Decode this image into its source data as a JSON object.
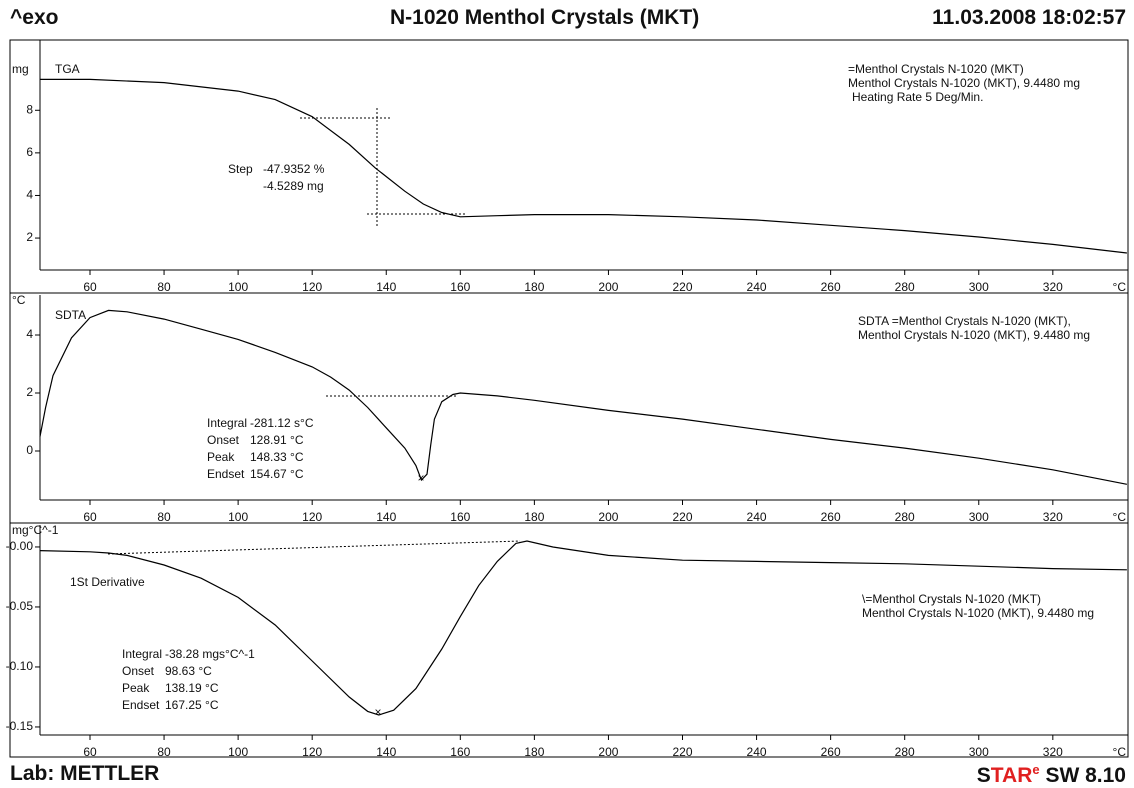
{
  "header": {
    "left": "^exo",
    "title": "N-1020 Menthol Crystals (MKT)",
    "datetime": "11.03.2008 18:02:57"
  },
  "footer": {
    "lab": "Lab: METTLER",
    "brand": "STAR",
    "brand_sup": "e",
    "version": "SW 8.10"
  },
  "chart_data": [
    {
      "type": "line",
      "ylabel": "mg",
      "xlabel": "°C",
      "x": [
        46.5,
        60,
        80,
        100,
        110,
        120,
        130,
        137,
        145,
        150,
        155,
        160,
        170,
        180,
        200,
        220,
        240,
        260,
        280,
        300,
        320,
        340
      ],
      "series": [
        {
          "name": "TGA",
          "color": "#000000",
          "values": [
            9.45,
            9.45,
            9.3,
            8.9,
            8.5,
            7.7,
            6.4,
            5.3,
            4.2,
            3.6,
            3.2,
            3.0,
            3.05,
            3.1,
            3.1,
            3.0,
            2.85,
            2.6,
            2.35,
            2.05,
            1.7,
            1.3
          ]
        }
      ],
      "xlim": [
        46.5,
        340.3
      ],
      "xticks": [
        60,
        80,
        100,
        120,
        140,
        160,
        180,
        200,
        220,
        240,
        260,
        280,
        300,
        320
      ],
      "ylim": [
        0.5,
        11.3
      ],
      "yticks": [
        2,
        4,
        6,
        8
      ],
      "annotations": [
        {
          "label": "Step",
          "lines": [
            "-47.9352 %",
            "-4.5289 mg"
          ]
        }
      ],
      "legend_text": [
        "=Menthol Crystals N-1020 (MKT)",
        "Menthol Crystals N-1020 (MKT), 9.4480 mg",
        "Heating Rate 5 Deg/Min."
      ]
    },
    {
      "type": "line",
      "ylabel": "°C",
      "xlabel": "°C",
      "x": [
        46.5,
        48,
        50,
        55,
        60,
        65,
        70,
        80,
        90,
        100,
        110,
        120,
        125,
        130,
        135,
        140,
        145,
        148,
        149.5,
        151,
        152,
        153,
        155,
        158,
        160,
        170,
        180,
        200,
        220,
        240,
        260,
        280,
        300,
        320,
        340
      ],
      "series": [
        {
          "name": "SDTA",
          "color": "#000000",
          "values": [
            0.5,
            1.5,
            2.6,
            3.9,
            4.6,
            4.85,
            4.8,
            4.55,
            4.2,
            3.85,
            3.4,
            2.9,
            2.55,
            2.1,
            1.5,
            0.8,
            0.1,
            -0.5,
            -1.0,
            -0.8,
            0.2,
            1.1,
            1.7,
            1.95,
            2.0,
            1.9,
            1.75,
            1.4,
            1.1,
            0.75,
            0.4,
            0.1,
            -0.25,
            -0.65,
            -1.15
          ]
        }
      ],
      "xlim": [
        46.5,
        340.3
      ],
      "xticks": [
        60,
        80,
        100,
        120,
        140,
        160,
        180,
        200,
        220,
        240,
        260,
        280,
        300,
        320
      ],
      "ylim": [
        -1.69,
        5.38
      ],
      "yticks": [
        0,
        2,
        4
      ],
      "annotations": [
        {
          "label": "Integral",
          "lines": [
            "-281.12 s°C"
          ]
        },
        {
          "label": "Onset",
          "lines": [
            "128.91 °C"
          ]
        },
        {
          "label": "Peak",
          "lines": [
            "148.33 °C"
          ]
        },
        {
          "label": "Endset",
          "lines": [
            "154.67 °C"
          ]
        }
      ],
      "legend_text": [
        "SDTA =Menthol Crystals N-1020 (MKT),",
        "Menthol Crystals N-1020 (MKT), 9.4480 mg"
      ]
    },
    {
      "type": "line",
      "ylabel": "mg°C^-1",
      "xlabel": "°C",
      "x": [
        46.5,
        60,
        65,
        70,
        80,
        90,
        100,
        110,
        120,
        130,
        135,
        138,
        142,
        148,
        155,
        160,
        165,
        170,
        175,
        178,
        185,
        200,
        220,
        240,
        260,
        280,
        300,
        320,
        340
      ],
      "series": [
        {
          "name": "1St Derivative",
          "color": "#000000",
          "values": [
            -0.003,
            -0.004,
            -0.005,
            -0.007,
            -0.015,
            -0.026,
            -0.042,
            -0.065,
            -0.095,
            -0.125,
            -0.137,
            -0.14,
            -0.136,
            -0.118,
            -0.085,
            -0.058,
            -0.032,
            -0.012,
            0.003,
            0.005,
            0.0,
            -0.007,
            -0.011,
            -0.012,
            -0.013,
            -0.014,
            -0.016,
            -0.018,
            -0.019
          ]
        }
      ],
      "xlim": [
        46.5,
        340.3
      ],
      "xticks": [
        60,
        80,
        100,
        120,
        140,
        160,
        180,
        200,
        220,
        240,
        260,
        280,
        300,
        320
      ],
      "ylim": [
        -0.1567,
        0.0183
      ],
      "yticks": [
        {
          "value": 0,
          "label": "-0.00"
        },
        -0.05,
        {
          "value": -0.1,
          "label": "-0.10"
        },
        -0.15
      ],
      "annotations": [
        {
          "label": "Integral",
          "lines": [
            "-38.28 mgs°C^-1"
          ]
        },
        {
          "label": "Onset",
          "lines": [
            "98.63 °C"
          ]
        },
        {
          "label": "Peak",
          "lines": [
            "138.19 °C"
          ]
        },
        {
          "label": "Endset",
          "lines": [
            "167.25 °C"
          ]
        }
      ],
      "legend_text": [
        "\\=Menthol Crystals N-1020 (MKT)",
        "Menthol Crystals N-1020 (MKT), 9.4480 mg"
      ]
    }
  ]
}
